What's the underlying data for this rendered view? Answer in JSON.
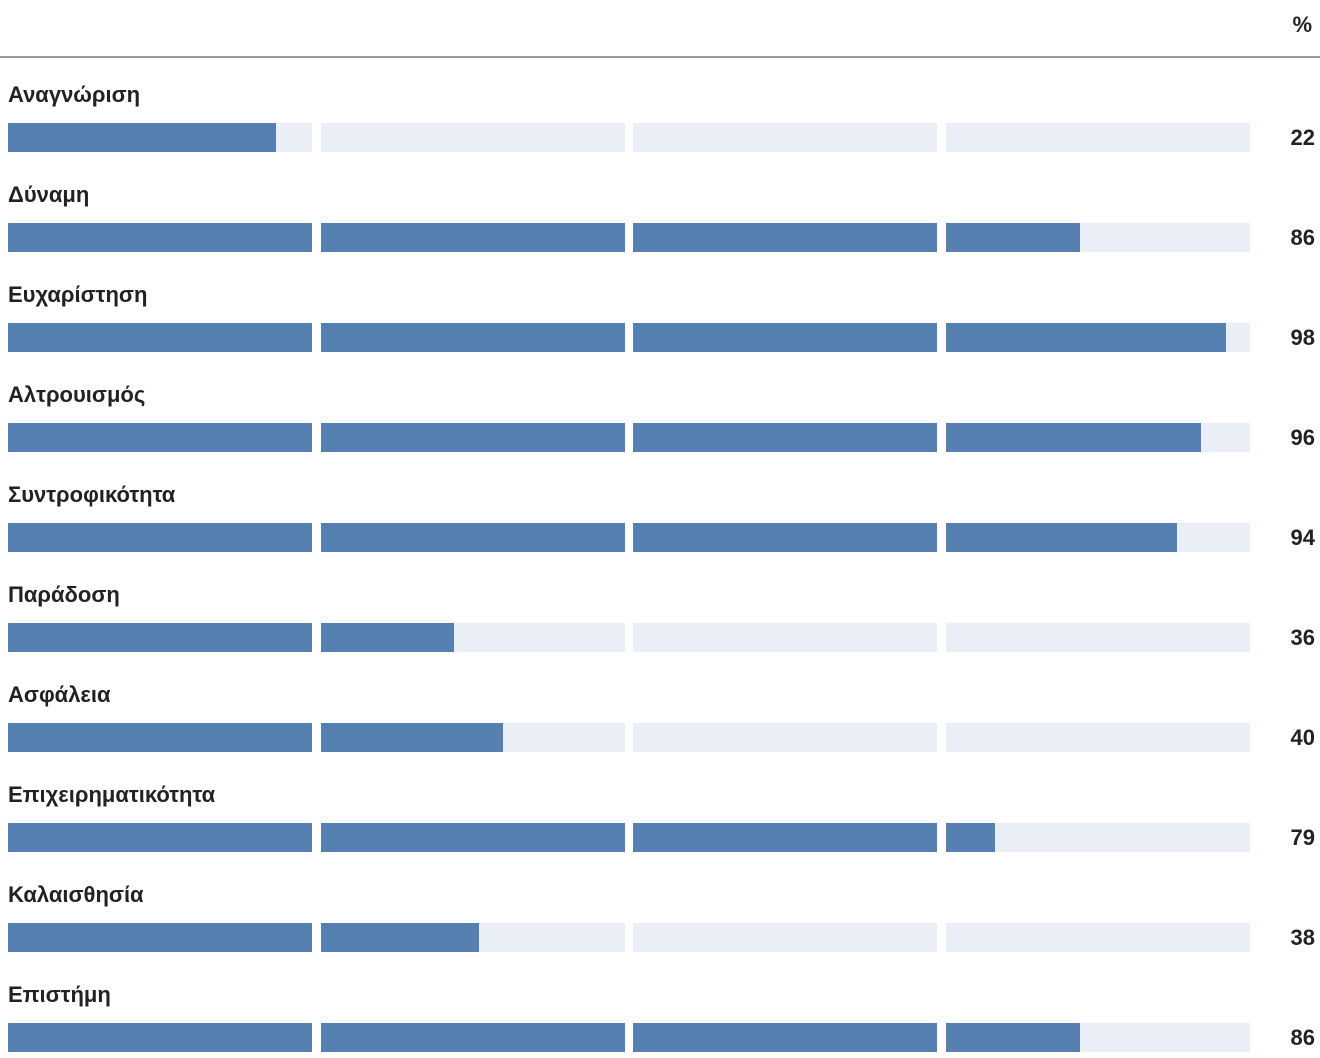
{
  "header": {
    "unit": "%"
  },
  "chart_data": {
    "type": "bar",
    "orientation": "horizontal",
    "categories": [
      "Αναγνώριση",
      "Δύναμη",
      "Ευχαρίστηση",
      "Αλτρουισμός",
      "Συντροφικότητα",
      "Παράδοση",
      "Ασφάλεια",
      "Επιχειρηματικότητα",
      "Καλαισθησία",
      "Επιστήμη"
    ],
    "values": [
      22,
      86,
      98,
      96,
      94,
      36,
      40,
      79,
      38,
      86
    ],
    "value_labels": [
      "22",
      "86",
      "98",
      "96",
      "94",
      "36",
      "40",
      "79",
      "38",
      "86"
    ],
    "xlim": [
      0,
      100
    ],
    "colors": {
      "fill": "#5680b1",
      "track": "#e9eef7"
    }
  }
}
